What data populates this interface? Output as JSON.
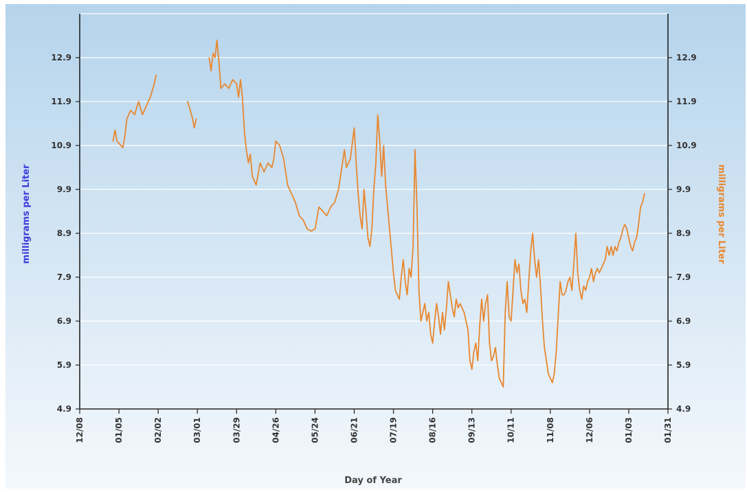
{
  "chart_data": {
    "type": "line",
    "xlabel": "Day of Year",
    "ylabel_left": "milligrams per Liter",
    "ylabel_right": "milligrams per Liter",
    "ylim": [
      4.9,
      13.9
    ],
    "y_ticks": [
      "4.9",
      "5.9",
      "6.9",
      "7.9",
      "8.9",
      "9.9",
      "10.9",
      "11.9",
      "12.9"
    ],
    "x_ticks": [
      "12/08",
      "01/05",
      "02/02",
      "03/01",
      "03/29",
      "04/26",
      "05/24",
      "06/21",
      "07/19",
      "08/16",
      "09/13",
      "10/11",
      "11/08",
      "12/06",
      "01/03",
      "01/31"
    ],
    "grid": true,
    "colors": {
      "left_title": "#3b3bd9",
      "right_title": "#e8872e",
      "line": "#e8872e",
      "bg_top": "#b5d4ec",
      "bg_bottom": "#f4f8fc"
    },
    "series": [
      {
        "segments": [
          [
            [
              0.85,
              11.0
            ],
            [
              0.9,
              11.25
            ],
            [
              0.95,
              11.0
            ],
            [
              1.05,
              10.9
            ],
            [
              1.1,
              10.85
            ],
            [
              1.15,
              11.1
            ],
            [
              1.2,
              11.5
            ],
            [
              1.3,
              11.7
            ],
            [
              1.4,
              11.6
            ],
            [
              1.5,
              11.9
            ],
            [
              1.6,
              11.6
            ],
            [
              1.7,
              11.8
            ],
            [
              1.8,
              12.0
            ],
            [
              1.9,
              12.3
            ],
            [
              1.95,
              12.5
            ]
          ],
          [
            [
              2.75,
              11.9
            ],
            [
              2.82,
              11.7
            ],
            [
              2.88,
              11.5
            ],
            [
              2.92,
              11.3
            ],
            [
              2.97,
              11.5
            ]
          ],
          [
            [
              3.3,
              12.9
            ],
            [
              3.35,
              12.6
            ],
            [
              3.4,
              13.0
            ],
            [
              3.45,
              12.9
            ],
            [
              3.5,
              13.3
            ],
            [
              3.55,
              12.8
            ],
            [
              3.6,
              12.2
            ],
            [
              3.7,
              12.3
            ],
            [
              3.8,
              12.2
            ],
            [
              3.9,
              12.4
            ],
            [
              4.0,
              12.3
            ],
            [
              4.05,
              12.0
            ],
            [
              4.1,
              12.4
            ],
            [
              4.15,
              12.0
            ],
            [
              4.2,
              11.2
            ],
            [
              4.25,
              10.8
            ],
            [
              4.3,
              10.5
            ],
            [
              4.35,
              10.7
            ],
            [
              4.4,
              10.2
            ],
            [
              4.5,
              10.0
            ],
            [
              4.6,
              10.5
            ],
            [
              4.7,
              10.3
            ],
            [
              4.8,
              10.5
            ],
            [
              4.9,
              10.4
            ],
            [
              4.95,
              10.6
            ],
            [
              5.0,
              11.0
            ],
            [
              5.1,
              10.9
            ],
            [
              5.2,
              10.6
            ],
            [
              5.3,
              10.0
            ],
            [
              5.4,
              9.8
            ],
            [
              5.5,
              9.6
            ],
            [
              5.6,
              9.3
            ],
            [
              5.7,
              9.2
            ],
            [
              5.8,
              9.0
            ],
            [
              5.9,
              8.95
            ],
            [
              6.0,
              9.0
            ],
            [
              6.1,
              9.5
            ],
            [
              6.2,
              9.4
            ],
            [
              6.3,
              9.3
            ],
            [
              6.4,
              9.5
            ],
            [
              6.5,
              9.6
            ],
            [
              6.6,
              9.9
            ],
            [
              6.7,
              10.5
            ],
            [
              6.75,
              10.8
            ],
            [
              6.8,
              10.4
            ],
            [
              6.9,
              10.6
            ],
            [
              7.0,
              11.3
            ],
            [
              7.05,
              10.5
            ],
            [
              7.1,
              9.8
            ],
            [
              7.15,
              9.3
            ],
            [
              7.2,
              9.0
            ],
            [
              7.25,
              9.9
            ],
            [
              7.3,
              9.4
            ],
            [
              7.35,
              8.8
            ],
            [
              7.4,
              8.6
            ],
            [
              7.45,
              9.0
            ],
            [
              7.5,
              9.9
            ],
            [
              7.55,
              10.5
            ],
            [
              7.6,
              11.6
            ],
            [
              7.65,
              11.0
            ],
            [
              7.7,
              10.2
            ],
            [
              7.75,
              10.9
            ],
            [
              7.8,
              10.0
            ],
            [
              7.85,
              9.5
            ],
            [
              7.9,
              9.0
            ],
            [
              7.95,
              8.5
            ],
            [
              8.0,
              8.0
            ],
            [
              8.05,
              7.6
            ],
            [
              8.1,
              7.5
            ],
            [
              8.15,
              7.4
            ],
            [
              8.2,
              7.9
            ],
            [
              8.25,
              8.3
            ],
            [
              8.3,
              7.8
            ],
            [
              8.35,
              7.5
            ],
            [
              8.4,
              8.1
            ],
            [
              8.45,
              7.9
            ],
            [
              8.5,
              8.6
            ],
            [
              8.55,
              10.8
            ],
            [
              8.6,
              9.5
            ],
            [
              8.65,
              7.6
            ],
            [
              8.7,
              6.9
            ],
            [
              8.8,
              7.3
            ],
            [
              8.85,
              6.9
            ],
            [
              8.9,
              7.1
            ],
            [
              8.95,
              6.6
            ],
            [
              9.0,
              6.4
            ],
            [
              9.05,
              6.9
            ],
            [
              9.1,
              7.3
            ],
            [
              9.15,
              7.0
            ],
            [
              9.2,
              6.6
            ],
            [
              9.25,
              7.1
            ],
            [
              9.3,
              6.7
            ],
            [
              9.35,
              7.2
            ],
            [
              9.4,
              7.8
            ],
            [
              9.45,
              7.5
            ],
            [
              9.5,
              7.2
            ],
            [
              9.55,
              7.0
            ],
            [
              9.6,
              7.4
            ],
            [
              9.65,
              7.2
            ],
            [
              9.7,
              7.3
            ],
            [
              9.8,
              7.1
            ],
            [
              9.85,
              6.9
            ],
            [
              9.9,
              6.7
            ],
            [
              9.95,
              6.0
            ],
            [
              10.0,
              5.8
            ],
            [
              10.05,
              6.2
            ],
            [
              10.1,
              6.4
            ],
            [
              10.15,
              6.0
            ],
            [
              10.2,
              6.8
            ],
            [
              10.25,
              7.4
            ],
            [
              10.3,
              6.9
            ],
            [
              10.35,
              7.3
            ],
            [
              10.4,
              7.5
            ],
            [
              10.45,
              6.4
            ],
            [
              10.5,
              6.0
            ],
            [
              10.55,
              6.1
            ],
            [
              10.6,
              6.3
            ],
            [
              10.65,
              5.9
            ],
            [
              10.7,
              5.6
            ],
            [
              10.75,
              5.5
            ],
            [
              10.8,
              5.4
            ],
            [
              10.85,
              7.1
            ],
            [
              10.9,
              7.8
            ],
            [
              10.95,
              7.0
            ],
            [
              11.0,
              6.9
            ],
            [
              11.05,
              7.6
            ],
            [
              11.1,
              8.3
            ],
            [
              11.15,
              8.0
            ],
            [
              11.2,
              8.2
            ],
            [
              11.25,
              7.6
            ],
            [
              11.3,
              7.3
            ],
            [
              11.35,
              7.4
            ],
            [
              11.4,
              7.1
            ],
            [
              11.45,
              7.8
            ],
            [
              11.5,
              8.5
            ],
            [
              11.55,
              8.9
            ],
            [
              11.6,
              8.3
            ],
            [
              11.65,
              7.9
            ],
            [
              11.7,
              8.3
            ],
            [
              11.75,
              7.7
            ],
            [
              11.8,
              6.9
            ],
            [
              11.85,
              6.3
            ],
            [
              11.9,
              6.0
            ],
            [
              11.95,
              5.7
            ],
            [
              12.0,
              5.6
            ],
            [
              12.05,
              5.5
            ],
            [
              12.1,
              5.7
            ],
            [
              12.15,
              6.2
            ],
            [
              12.2,
              7.0
            ],
            [
              12.25,
              7.8
            ],
            [
              12.3,
              7.5
            ],
            [
              12.35,
              7.5
            ],
            [
              12.4,
              7.6
            ],
            [
              12.45,
              7.8
            ],
            [
              12.5,
              7.9
            ],
            [
              12.55,
              7.6
            ],
            [
              12.6,
              8.2
            ],
            [
              12.65,
              8.9
            ],
            [
              12.7,
              8.0
            ],
            [
              12.75,
              7.6
            ],
            [
              12.8,
              7.4
            ],
            [
              12.85,
              7.7
            ],
            [
              12.9,
              7.6
            ],
            [
              12.95,
              7.8
            ],
            [
              13.0,
              7.9
            ],
            [
              13.05,
              8.1
            ],
            [
              13.1,
              7.8
            ],
            [
              13.15,
              8.0
            ],
            [
              13.2,
              8.1
            ],
            [
              13.25,
              8.0
            ],
            [
              13.3,
              8.1
            ],
            [
              13.35,
              8.2
            ],
            [
              13.4,
              8.3
            ],
            [
              13.45,
              8.6
            ],
            [
              13.5,
              8.4
            ],
            [
              13.55,
              8.6
            ],
            [
              13.6,
              8.4
            ],
            [
              13.65,
              8.6
            ],
            [
              13.7,
              8.5
            ],
            [
              13.75,
              8.7
            ],
            [
              13.8,
              8.8
            ],
            [
              13.85,
              9.0
            ],
            [
              13.9,
              9.1
            ],
            [
              13.95,
              9.0
            ],
            [
              14.0,
              8.8
            ],
            [
              14.05,
              8.6
            ],
            [
              14.1,
              8.5
            ],
            [
              14.15,
              8.7
            ],
            [
              14.2,
              8.8
            ],
            [
              14.25,
              9.1
            ],
            [
              14.3,
              9.5
            ],
            [
              14.35,
              9.6
            ],
            [
              14.4,
              9.8
            ]
          ]
        ]
      }
    ]
  }
}
